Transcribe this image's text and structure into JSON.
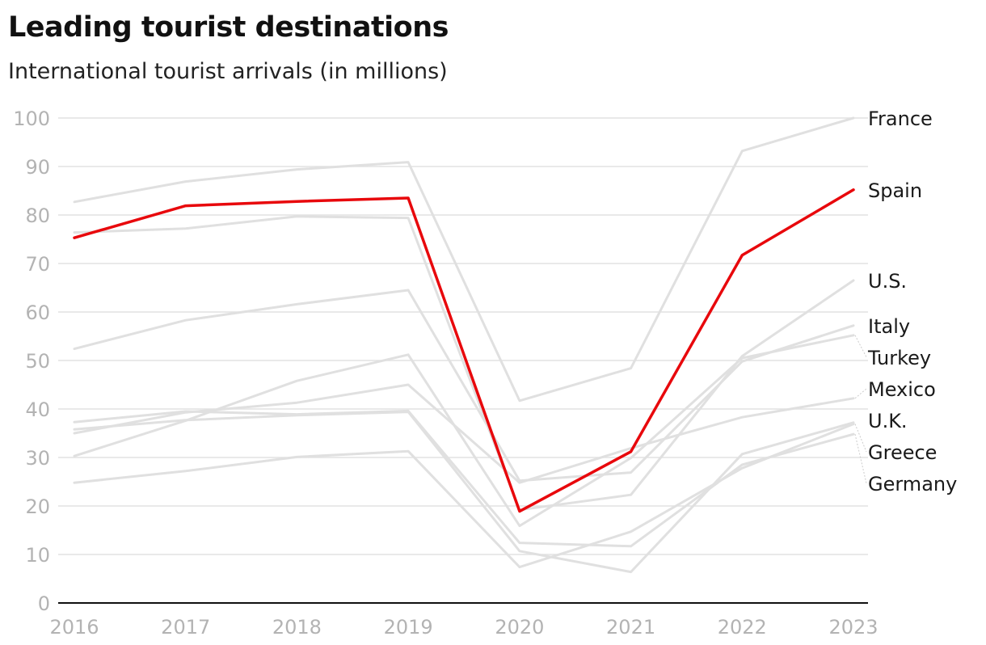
{
  "title": "Leading tourist destinations",
  "subtitle": "International tourist arrivals (in millions)",
  "chart_data": {
    "type": "line",
    "title": "Leading tourist destinations",
    "subtitle": "International tourist arrivals (in millions)",
    "xlabel": "",
    "ylabel": "",
    "x": [
      2016,
      2017,
      2018,
      2019,
      2020,
      2021,
      2022,
      2023
    ],
    "ylim": [
      0,
      100
    ],
    "yticks": [
      0,
      10,
      20,
      30,
      40,
      50,
      60,
      70,
      80,
      90,
      100
    ],
    "grid": true,
    "legend": "none (series labeled at right end of lines)",
    "highlight_color": "#e8080c",
    "base_color": "#e0e0e0",
    "highlight": "Spain",
    "series": [
      {
        "name": "France",
        "values": [
          82.7,
          86.9,
          89.4,
          90.9,
          41.7,
          48.4,
          93.2,
          100.0
        ]
      },
      {
        "name": "Spain",
        "values": [
          75.3,
          81.9,
          82.8,
          83.5,
          18.9,
          31.2,
          71.7,
          85.2
        ]
      },
      {
        "name": "U.S.",
        "values": [
          76.4,
          77.2,
          79.7,
          79.4,
          19.2,
          22.3,
          50.9,
          66.5
        ]
      },
      {
        "name": "Italy",
        "values": [
          52.4,
          58.3,
          61.6,
          64.5,
          25.2,
          26.9,
          49.8,
          57.2
        ]
      },
      {
        "name": "Turkey",
        "values": [
          30.3,
          37.6,
          45.8,
          51.2,
          15.9,
          29.9,
          50.5,
          55.2
        ]
      },
      {
        "name": "Mexico",
        "values": [
          35.0,
          39.3,
          41.3,
          45.0,
          24.8,
          31.9,
          38.3,
          42.2
        ]
      },
      {
        "name": "Greece",
        "values": [
          24.8,
          27.2,
          30.1,
          31.3,
          7.4,
          14.7,
          27.8,
          36.9
        ]
      },
      {
        "name": "U.K.",
        "values": [
          35.8,
          37.7,
          38.7,
          39.4,
          10.7,
          6.4,
          30.7,
          37.2
        ]
      },
      {
        "name": "Germany",
        "values": [
          37.3,
          39.5,
          38.9,
          39.6,
          12.4,
          11.7,
          28.5,
          34.8
        ]
      }
    ]
  }
}
